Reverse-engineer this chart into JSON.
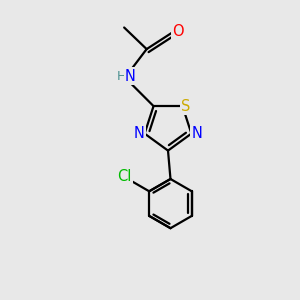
{
  "background_color": "#e8e8e8",
  "atom_colors": {
    "O": "#ff0000",
    "N": "#0000ff",
    "S": "#ccaa00",
    "Cl": "#00bb00",
    "C": "#000000",
    "H": "#4a9090"
  },
  "figsize": [
    3.0,
    3.0
  ],
  "dpi": 100,
  "lw": 1.6,
  "fs": 10.5
}
